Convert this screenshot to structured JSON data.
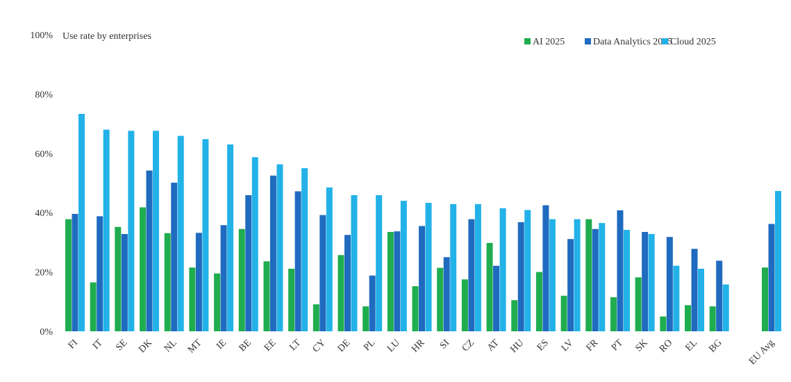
{
  "chart_data": {
    "type": "bar",
    "title": "",
    "annotation": "Use rate by enterprises",
    "xlabel": "",
    "ylabel": "",
    "ylim": [
      0,
      100
    ],
    "yticks": [
      "0%",
      "20%",
      "40%",
      "60%",
      "80%",
      "100%"
    ],
    "ytick_values": [
      0,
      20,
      40,
      60,
      80,
      100
    ],
    "grid": false,
    "legend": "top-right",
    "categories": [
      "FI",
      "IT",
      "SE",
      "DK",
      "NL",
      "MT",
      "IE",
      "BE",
      "EE",
      "LT",
      "CY",
      "DE",
      "PL",
      "LU",
      "HR",
      "SI",
      "CZ",
      "AT",
      "HU",
      "ES",
      "LV",
      "FR",
      "PT",
      "SK",
      "RO",
      "EL",
      "BG",
      "EU Avg"
    ],
    "series": [
      {
        "name": "AI 2025",
        "color": "#1fad4f",
        "values": [
          37.8,
          16.5,
          35.2,
          41.8,
          33.1,
          21.5,
          19.5,
          34.5,
          23.6,
          21.1,
          9.1,
          25.7,
          8.4,
          33.5,
          15.2,
          21.4,
          17.5,
          29.8,
          10.5,
          20.0,
          12.0,
          37.8,
          11.5,
          18.2,
          5.0,
          8.8,
          8.4,
          21.5
        ]
      },
      {
        "name": "Data Analytics 2025",
        "color": "#1f6bbf",
        "values": [
          39.6,
          38.8,
          32.8,
          54.2,
          50.1,
          33.2,
          35.8,
          45.9,
          52.5,
          47.2,
          39.2,
          32.5,
          18.8,
          33.7,
          35.5,
          25.0,
          37.8,
          22.1,
          36.8,
          42.5,
          31.1,
          34.5,
          40.8,
          33.5,
          31.8,
          27.8,
          23.8,
          36.2
        ]
      },
      {
        "name": "Cloud 2025",
        "color": "#22b2e8",
        "values": [
          73.3,
          68.0,
          67.6,
          67.6,
          65.9,
          64.8,
          63.0,
          58.7,
          56.3,
          55.0,
          48.5,
          45.9,
          45.9,
          44.0,
          43.3,
          42.9,
          42.9,
          41.5,
          40.9,
          37.8,
          37.8,
          36.5,
          34.2,
          32.8,
          22.1,
          21.1,
          15.8,
          47.3
        ]
      }
    ]
  }
}
